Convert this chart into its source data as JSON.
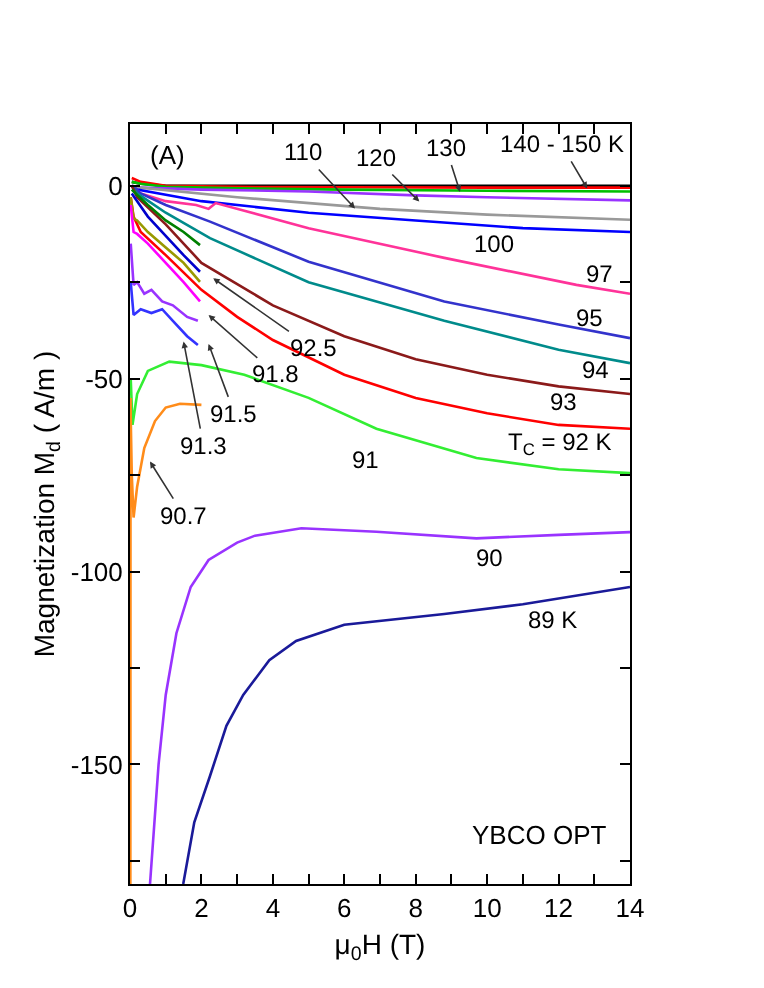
{
  "chart_data": {
    "type": "line",
    "xlabel": "μ$_{0}$H (T)",
    "ylabel": "Magnetization M$_{d}$ ( A/m )",
    "xlim": [
      0,
      14
    ],
    "xticks": [
      0,
      {
        "value": 1,
        "label": null
      },
      2,
      {
        "value": 3,
        "label": null
      },
      4,
      {
        "value": 5,
        "label": null
      },
      6,
      {
        "value": 7,
        "label": null
      },
      8,
      {
        "value": 9,
        "label": null
      },
      10,
      {
        "value": 11,
        "label": null
      },
      12,
      {
        "value": 13,
        "label": null
      },
      14
    ],
    "ylim": [
      -181,
      16
    ],
    "yticks": [
      {
        "value": -175,
        "label": null
      },
      -150,
      {
        "value": -125,
        "label": null
      },
      -100,
      {
        "value": -75,
        "label": null
      },
      -50,
      {
        "value": -25,
        "label": null
      },
      0
    ],
    "grid": false,
    "marker": "none",
    "line_style": "solid",
    "series": [
      {
        "color": "#000000",
        "x": [
          0.05,
          0.3,
          1,
          3,
          6,
          10,
          14
        ],
        "values": [
          1,
          0.5,
          0,
          0,
          0,
          0,
          0
        ]
      },
      {
        "color": "#ff0000",
        "x": [
          0.05,
          0.3,
          1,
          3,
          6,
          10,
          14
        ],
        "values": [
          2,
          1,
          0,
          -0.3,
          -0.4,
          -0.5,
          -0.5
        ]
      },
      {
        "color": "#00c000",
        "x": [
          0.05,
          0.3,
          1,
          3,
          6,
          10,
          14
        ],
        "values": [
          1,
          0.5,
          -0.3,
          -0.7,
          -1,
          -1.3,
          -1.5
        ]
      },
      {
        "color": "#9933ff",
        "x": [
          0.05,
          0.3,
          2,
          5,
          8,
          10,
          14
        ],
        "values": [
          0,
          -0.5,
          -1,
          -1.5,
          -2.5,
          -3,
          -3.8
        ]
      },
      {
        "color": "#999999",
        "x": [
          0.05,
          0.3,
          3,
          7,
          10,
          14
        ],
        "values": [
          0,
          -0.5,
          -3,
          -6,
          -7.5,
          -8.8
        ]
      },
      {
        "color": "#0000ff",
        "x": [
          0.05,
          0.2,
          2,
          5,
          8,
          11,
          14
        ],
        "values": [
          0,
          -1,
          -4,
          -7,
          -9,
          -11,
          -12
        ]
      },
      {
        "color": "#ff3399",
        "x": [
          0.05,
          0.3,
          1,
          1.85,
          2.2,
          2.4,
          5,
          8.8,
          12.5,
          14
        ],
        "values": [
          0,
          -2,
          -4,
          -5,
          -6,
          -4.5,
          -11,
          -18.7,
          -25.7,
          -28
        ]
      },
      {
        "color": "#3333cc",
        "x": [
          0.05,
          0.3,
          1,
          2.24,
          5,
          8.8,
          12,
          14
        ],
        "values": [
          0,
          -2,
          -5,
          -9.3,
          -19.7,
          -30,
          -36,
          -39.5
        ]
      },
      {
        "color": "#008b8b",
        "x": [
          0.05,
          0.2,
          1,
          2.24,
          5,
          8.8,
          12,
          14
        ],
        "values": [
          0,
          -2,
          -7,
          -13.6,
          -25,
          -35,
          -42.5,
          -46
        ]
      },
      {
        "color": "#8b1a1a",
        "x": [
          0.05,
          0.2,
          1,
          2,
          4,
          6,
          8,
          10,
          12,
          14
        ],
        "values": [
          0,
          -3,
          -10,
          -20,
          -31,
          -39,
          -45,
          -49,
          -52,
          -54
        ]
      },
      {
        "color": "#ff0000",
        "x": [
          0.02,
          0.1,
          0.3,
          1,
          2,
          3,
          4,
          6,
          8,
          10,
          12,
          14
        ],
        "values": [
          -3,
          -8,
          -12,
          -18,
          -27,
          -34,
          -40,
          -49,
          -55,
          -59,
          -62,
          -63
        ]
      },
      {
        "color": "#008000",
        "x": [
          0.05,
          0.2,
          0.5,
          1,
          1.5,
          1.96
        ],
        "values": [
          -1,
          -2.4,
          -5,
          -9,
          -12,
          -15.4
        ]
      },
      {
        "color": "#0000cc",
        "x": [
          0.05,
          0.2,
          0.5,
          1,
          1.5,
          1.96
        ],
        "values": [
          -2,
          -4,
          -8,
          -13,
          -18,
          -22.3
        ]
      },
      {
        "color": "#999900",
        "x": [
          0.02,
          0.1,
          0.2,
          0.5,
          1,
          1.5,
          1.96
        ],
        "values": [
          -3,
          -8.5,
          -9,
          -12,
          -16,
          -20,
          -24.9
        ]
      },
      {
        "color": "#ff00ff",
        "x": [
          0.02,
          0.1,
          0.2,
          0.5,
          1,
          1.5,
          1.96
        ],
        "values": [
          -5,
          -12,
          -12.5,
          -15,
          -20,
          -25,
          -30
        ]
      },
      {
        "color": "#9933ff",
        "x": [
          0.02,
          0.1,
          0.2,
          0.4,
          0.6,
          0.9,
          1.2,
          1.6,
          1.9
        ],
        "values": [
          -15,
          -25.7,
          -25,
          -28,
          -27,
          -30,
          -31,
          -34,
          -35
        ]
      },
      {
        "color": "#3333ff",
        "x": [
          0.02,
          0.1,
          0.3,
          0.6,
          0.9,
          1.2,
          1.6,
          1.9
        ],
        "values": [
          -25,
          -33.5,
          -32,
          -33,
          -32,
          -35,
          -39,
          -41.3
        ]
      },
      {
        "color": "#33ee33",
        "x": [
          0.02,
          0.07,
          0.2,
          0.5,
          1.1,
          2,
          3.2,
          5,
          6.9,
          9.7,
          12,
          14
        ],
        "values": [
          -50,
          -62,
          -54,
          -48,
          -45.6,
          -46.5,
          -49,
          -55,
          -63,
          -70.6,
          -73.5,
          -74.5
        ]
      },
      {
        "color": "#ff8c1a",
        "x": [
          0.01,
          0.015,
          0.02,
          0.05,
          0.1,
          0.2,
          0.4,
          0.7,
          1,
          1.4,
          2
        ],
        "values": [
          -181,
          -55,
          -60,
          -75,
          -86,
          -78,
          -68,
          -61,
          -57.5,
          -56.5,
          -56.8
        ]
      },
      {
        "color": "#9933ff",
        "x": [
          0.56,
          0.8,
          1,
          1.3,
          1.7,
          2.2,
          3,
          3.5,
          4.8,
          6.9,
          9.7,
          12,
          14
        ],
        "values": [
          -181,
          -150,
          -132,
          -116,
          -104,
          -97,
          -92.5,
          -90.7,
          -88.8,
          -89.7,
          -91.4,
          -90.5,
          -89.8
        ]
      },
      {
        "color": "#1a1a99",
        "x": [
          1.49,
          1.8,
          2.24,
          2.7,
          3.17,
          3.9,
          4.65,
          6,
          8.8,
          11,
          14
        ],
        "values": [
          -181,
          -165,
          -153,
          -140,
          -132,
          -123,
          -118,
          -113.8,
          -111,
          -108.5,
          -104
        ]
      }
    ],
    "annotations": [
      "(A)",
      "YBCO OPT",
      "100",
      "97",
      "95",
      "94",
      "93",
      "T$_{C}$ = 92 K",
      "91",
      "90",
      "89 K",
      {
        "text": "110",
        "x": 6.3,
        "y": -5.9
      },
      {
        "text": "120",
        "x": 8.1,
        "y": -4.1
      },
      {
        "text": "130",
        "x": 9.24,
        "y": -1.6
      },
      {
        "text": "140 - 150 K",
        "x": 12.8,
        "y": -0.7
      },
      {
        "text": "92.5",
        "x": 2.33,
        "y": -24
      },
      {
        "text": "91.8",
        "x": 2.2,
        "y": -33.5
      },
      {
        "text": "91.5",
        "x": 2.2,
        "y": -41
      },
      {
        "text": "91.3",
        "x": 1.5,
        "y": -40.4
      },
      {
        "text": "90.7",
        "x": 0.56,
        "y": -71.5
      }
    ]
  }
}
